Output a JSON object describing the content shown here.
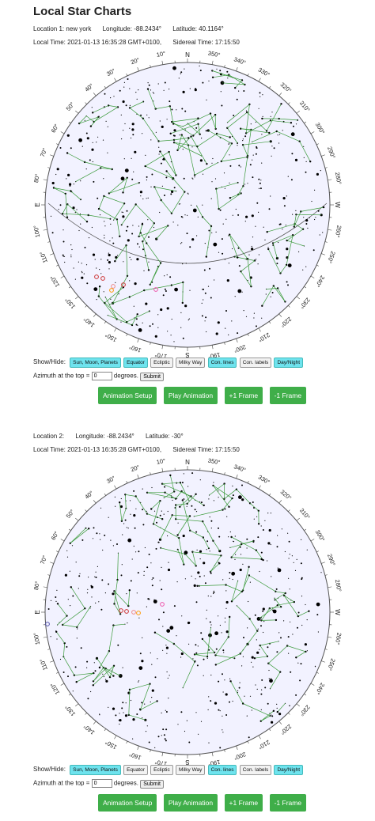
{
  "page_title": "Local Star Charts",
  "colors": {
    "sky": "#f2f2ff",
    "constellation": "#3a9a3a",
    "toggle_on": "#6ee3ee",
    "button": "#3fae49"
  },
  "charts": [
    {
      "location_label": "Location 1: new york",
      "longitude": "Longitude: -88.2434°",
      "latitude": "Latitude: 40.1164°",
      "local_time": "Local Time: 2021-01-13  16:35:28 GMT+0100,",
      "sidereal_time": "Sidereal Time: 17:15:50",
      "show_hide_label": "Show/Hide:",
      "toggles": [
        {
          "label": "Sun, Moon, Planets",
          "on": true
        },
        {
          "label": "Equator",
          "on": true
        },
        {
          "label": "Ecliptic",
          "on": false
        },
        {
          "label": "Milky Way",
          "on": false
        },
        {
          "label": "Con. lines",
          "on": true
        },
        {
          "label": "Con. labels",
          "on": false
        },
        {
          "label": "Day/Night",
          "on": true
        }
      ],
      "azimuth_label": "Azimuth at the top =",
      "azimuth_value": "0",
      "degrees_label": "degrees.",
      "submit_label": "Submit",
      "buttons": [
        "Animation Setup",
        "Play Animation",
        "+1 Frame",
        "-1 Frame"
      ],
      "show_equator": true
    },
    {
      "location_label": "Location 2:",
      "longitude": "Longitude: -88.2434°",
      "latitude": "Latitude: -30°",
      "local_time": "Local Time: 2021-01-13  16:35:28 GMT+0100,",
      "sidereal_time": "Sidereal Time: 17:15:50",
      "show_hide_label": "Show/Hide:",
      "toggles": [
        {
          "label": "Sun, Moon, Planets",
          "on": true
        },
        {
          "label": "Equator",
          "on": false
        },
        {
          "label": "Ecliptic",
          "on": false
        },
        {
          "label": "Milky Way",
          "on": false
        },
        {
          "label": "Con. lines",
          "on": true
        },
        {
          "label": "Con. labels",
          "on": false
        },
        {
          "label": "Day/Night",
          "on": true
        }
      ],
      "azimuth_label": "Azimuth at the top =",
      "azimuth_value": "0",
      "degrees_label": "degrees.",
      "submit_label": "Submit",
      "buttons": [
        "Animation Setup",
        "Play Animation",
        "+1 Frame",
        "-1 Frame"
      ],
      "show_equator": false
    }
  ],
  "compass": {
    "N": "N",
    "S": "S",
    "E": "E",
    "W": "W"
  },
  "azimuth_ticks": [
    "10°",
    "20°",
    "30°",
    "40°",
    "50°",
    "60°",
    "70°",
    "80°",
    "100°",
    "110°",
    "120°",
    "130°",
    "140°",
    "150°",
    "160°",
    "170°",
    "190°",
    "200°",
    "210°",
    "220°",
    "230°",
    "240°",
    "250°",
    "260°",
    "280°",
    "290°",
    "300°",
    "310°",
    "320°",
    "330°",
    "340°",
    "350°"
  ]
}
